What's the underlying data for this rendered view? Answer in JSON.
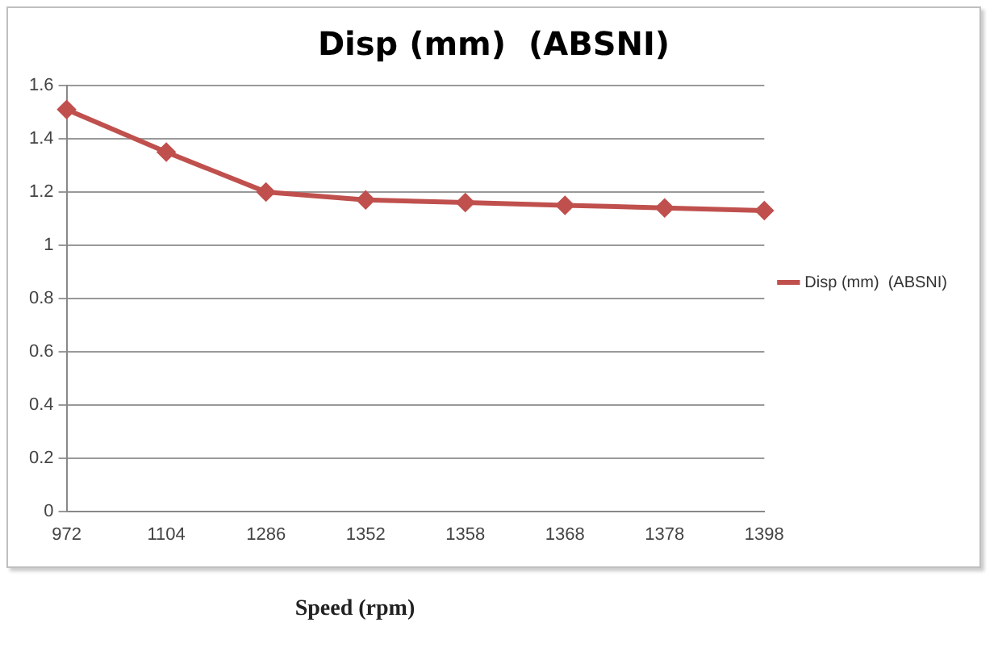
{
  "chart_data": {
    "type": "line",
    "title": "Disp (mm)  (ABSNI)",
    "xlabel": "Speed (rpm)",
    "categories": [
      "972",
      "1104",
      "1286",
      "1352",
      "1358",
      "1368",
      "1378",
      "1398"
    ],
    "series": [
      {
        "name": "Disp (mm)  (ABSNI)",
        "color": "#c0504d",
        "values": [
          1.51,
          1.35,
          1.2,
          1.17,
          1.16,
          1.15,
          1.14,
          1.13
        ]
      }
    ],
    "ylim": [
      0,
      1.6
    ],
    "yticks": [
      0,
      0.2,
      0.4,
      0.6,
      0.8,
      1,
      1.2,
      1.4,
      1.6
    ],
    "grid": "y",
    "legend": "right",
    "marker": "diamond",
    "line_style": "solid"
  }
}
